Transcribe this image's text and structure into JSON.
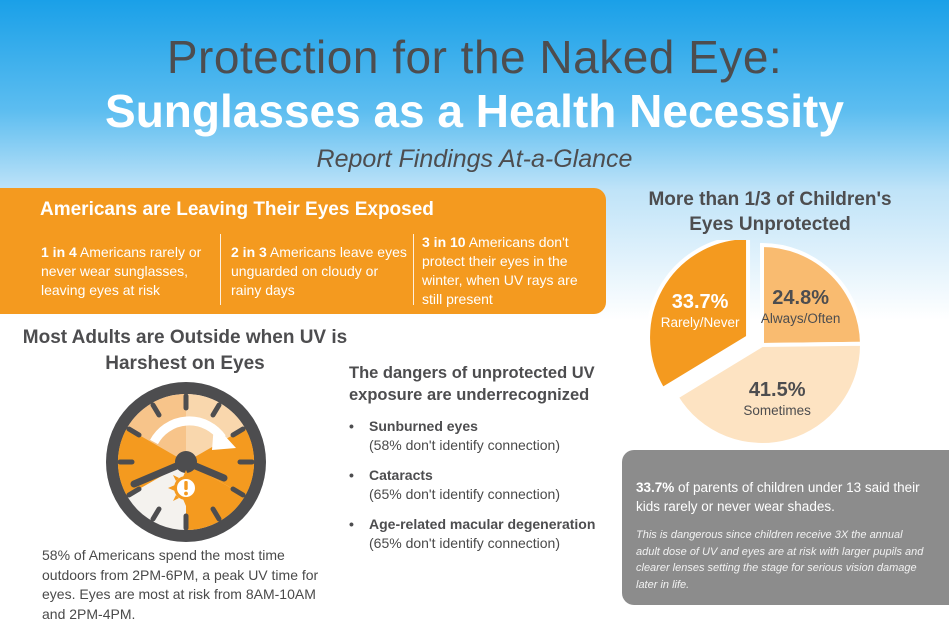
{
  "header": {
    "title_line1": "Protection for the Naked Eye:",
    "title_line2": "Sunglasses as a Health Necessity",
    "subtitle": "Report Findings At-a-Glance"
  },
  "exposed": {
    "title": "Americans are Leaving Their Eyes Exposed",
    "stats": [
      {
        "bold": "1 in 4",
        "rest": " Americans rarely or never wear sunglasses, leaving eyes at risk"
      },
      {
        "bold": "2 in 3",
        "rest": " Americans leave eyes unguarded on cloudy or rainy days"
      },
      {
        "bold": "3 in 10",
        "rest": " Americans don't protect their eyes in the winter, when UV rays are still present"
      }
    ]
  },
  "adults": {
    "title": "Most Adults are Outside when UV is Harshest on Eyes",
    "clock_icon": "clock-icon",
    "warning_icon": "sun-warning-icon",
    "text": "58% of Americans spend the most time outdoors from 2PM-6PM, a peak UV time for eyes. Eyes are most at risk from 8AM-10AM and 2PM-4PM."
  },
  "dangers": {
    "title": "The dangers of unprotected UV exposure are underrecognized",
    "bullet": "•",
    "items": [
      {
        "name": "Sunburned eyes",
        "desc": "(58% don't identify connection)"
      },
      {
        "name": "Cataracts",
        "desc": "(65% don't identify connection)"
      },
      {
        "name": "Age-related macular degeneration",
        "desc": "(65% don't identify connection)"
      }
    ]
  },
  "children": {
    "title": "More than 1/3 of Children's Eyes Unprotected",
    "chart_data": {
      "type": "pie",
      "title": "More than 1/3 of Children's Eyes Unprotected",
      "slices": [
        {
          "label": "Rarely/Never",
          "value": 33.7,
          "display": "33.7%",
          "color": "#f49a1f"
        },
        {
          "label": "Always/Often",
          "value": 24.8,
          "display": "24.8%",
          "color": "#f9bb70"
        },
        {
          "label": "Sometimes",
          "value": 41.5,
          "display": "41.5%",
          "color": "#fde3c2"
        }
      ]
    },
    "summary_bold": "33.7%",
    "summary_rest": " of parents of children under 13 said their kids rarely or never wear shades.",
    "note": "This is dangerous since children receive 3X the annual adult dose of UV and eyes are at risk with larger pupils and clearer lenses setting the stage for serious vision damage later in life."
  },
  "colors": {
    "orange": "#f49a1f",
    "light_orange": "#f9bb70",
    "pale_orange": "#fde3c2",
    "dark_gray": "#4d4d4f",
    "box_gray": "#8c8c8c",
    "sky_blue": "#1aa0e8"
  }
}
